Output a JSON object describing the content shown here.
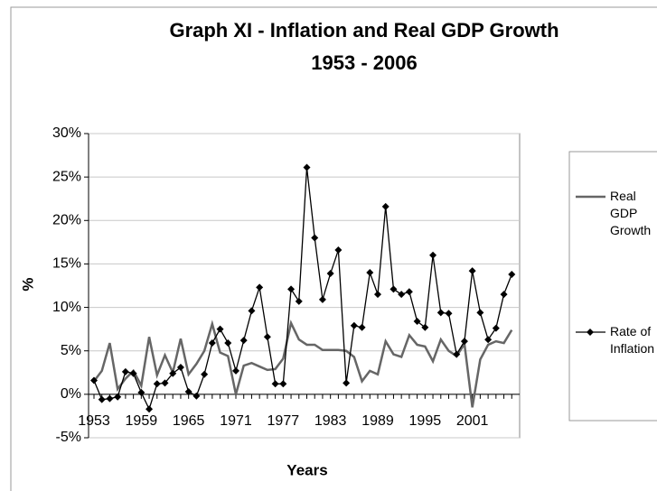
{
  "chart_data": {
    "type": "line",
    "title": "Graph XI - Inflation and Real GDP Growth",
    "subtitle": "1953 - 2006",
    "x_label": "Years",
    "y_label": "%",
    "categories": [
      "1953",
      null,
      null,
      null,
      null,
      null,
      "1959",
      null,
      null,
      null,
      null,
      null,
      "1965",
      null,
      null,
      null,
      null,
      null,
      "1971",
      null,
      null,
      null,
      null,
      null,
      "1977",
      null,
      null,
      null,
      null,
      null,
      "1983",
      null,
      null,
      null,
      null,
      null,
      "1989",
      null,
      null,
      null,
      null,
      null,
      "1995",
      null,
      null,
      null,
      null,
      null,
      "2001",
      null,
      null,
      null,
      null,
      null
    ],
    "series": [
      {
        "name": "Real GDP Growth",
        "color": "#666666",
        "marker": "none",
        "values": [
          1.5,
          2.7,
          5.9,
          0.6,
          1.8,
          2.7,
          1.0,
          6.6,
          2.2,
          4.5,
          2.5,
          6.4,
          2.3,
          3.5,
          5.0,
          8.1,
          4.8,
          4.4,
          0.0,
          3.3,
          3.6,
          3.2,
          2.8,
          2.9,
          4.1,
          8.2,
          6.3,
          5.7,
          5.7,
          5.1,
          5.1,
          5.1,
          5.0,
          4.3,
          1.5,
          2.7,
          2.3,
          6.1,
          4.6,
          4.3,
          6.8,
          5.7,
          5.5,
          3.8,
          6.3,
          5.0,
          4.4,
          5.8,
          -1.5,
          4.0,
          5.7,
          6.1,
          5.9,
          7.4
        ]
      },
      {
        "name": "Rate of Inflation",
        "color": "#000000",
        "marker": "diamond",
        "values": [
          1.6,
          -0.6,
          -0.5,
          -0.3,
          2.6,
          2.4,
          0.2,
          -1.7,
          1.2,
          1.3,
          2.4,
          3.1,
          0.3,
          -0.2,
          2.3,
          5.9,
          7.5,
          5.9,
          2.7,
          6.2,
          9.6,
          12.3,
          6.6,
          1.2,
          1.2,
          12.1,
          10.7,
          26.1,
          18.0,
          10.9,
          13.9,
          16.6,
          1.3,
          7.9,
          7.7,
          14.0,
          11.5,
          21.6,
          12.1,
          11.5,
          11.8,
          8.4,
          7.7,
          16.0,
          9.4,
          9.3,
          4.6,
          6.1,
          14.2,
          9.4,
          6.3,
          7.6,
          11.5,
          13.8
        ]
      }
    ],
    "ylim": [
      -5,
      30
    ],
    "yticks": [
      {
        "value": -5,
        "label": "-5%"
      },
      {
        "value": 0,
        "label": "0%"
      },
      {
        "value": 5,
        "label": "5%"
      },
      {
        "value": 10,
        "label": "10%"
      },
      {
        "value": 15,
        "label": "15%"
      },
      {
        "value": 20,
        "label": "20%"
      },
      {
        "value": 25,
        "label": "25%"
      },
      {
        "value": 30,
        "label": "30%"
      }
    ],
    "grid": true,
    "legend": "right"
  }
}
